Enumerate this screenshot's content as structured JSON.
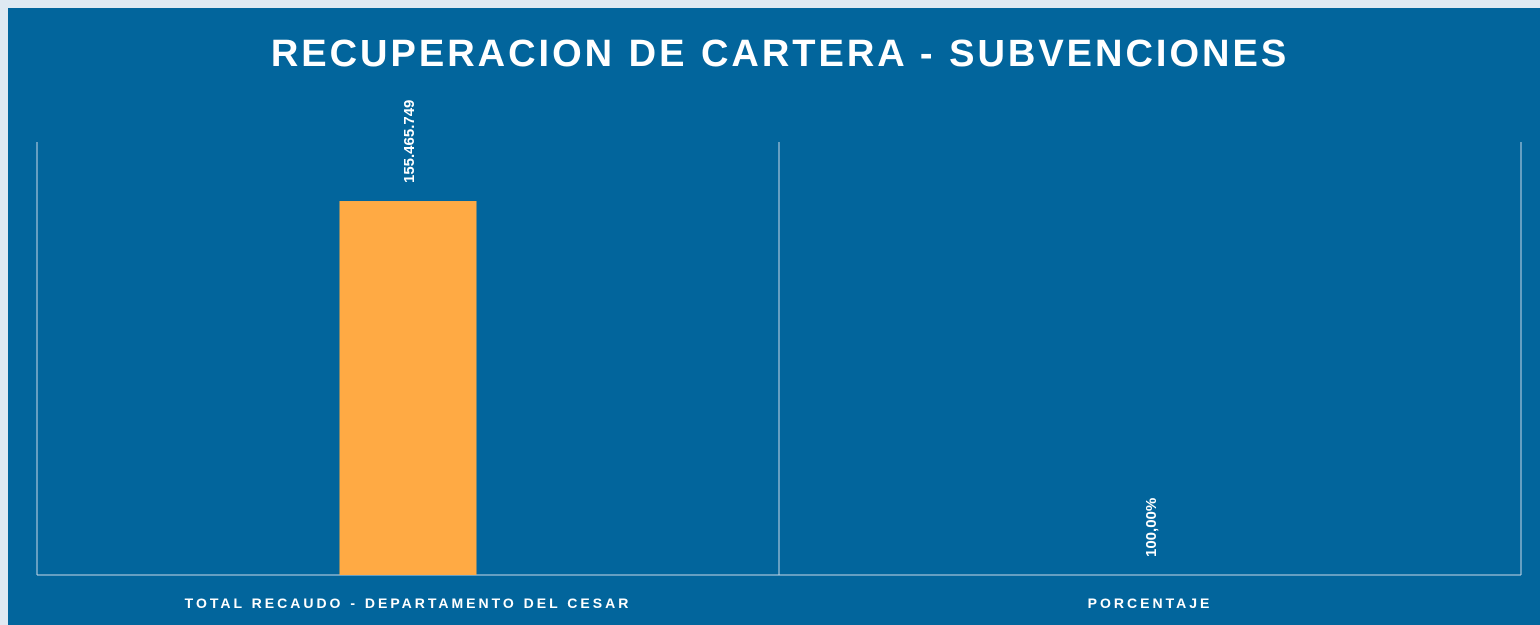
{
  "chart_data": {
    "type": "bar",
    "title": "RECUPERACION DE CARTERA - SUBVENCIONES",
    "categories": [
      "TOTAL RECAUDO - DEPARTAMENTO DEL CESAR",
      "PORCENTAJE"
    ],
    "values": [
      155465749,
      100
    ],
    "value_labels": [
      "155.465.749",
      "100,00%"
    ],
    "color": "#ffaa44",
    "ylim": [
      0,
      180000000
    ]
  }
}
